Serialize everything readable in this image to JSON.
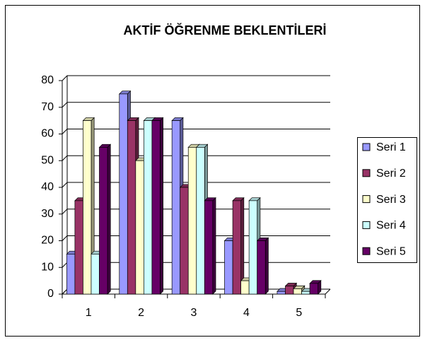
{
  "chart_data": {
    "type": "bar",
    "title": "AKTİF ÖĞRENME BEKLENTİLERİ",
    "categories": [
      "1",
      "2",
      "3",
      "4",
      "5"
    ],
    "series": [
      {
        "name": "Seri 1",
        "color": "#9999ff",
        "values": [
          15,
          75,
          65,
          20,
          1
        ]
      },
      {
        "name": "Seri 2",
        "color": "#993366",
        "values": [
          35,
          65,
          40,
          35,
          3
        ]
      },
      {
        "name": "Seri 3",
        "color": "#ffffcc",
        "values": [
          65,
          50,
          55,
          5,
          2
        ]
      },
      {
        "name": "Seri 4",
        "color": "#ccffff",
        "values": [
          15,
          65,
          55,
          35,
          1
        ]
      },
      {
        "name": "Seri 5",
        "color": "#660066",
        "values": [
          55,
          65,
          35,
          20,
          4
        ]
      }
    ],
    "ylim": [
      0,
      80
    ],
    "yticks": [
      0,
      10,
      20,
      30,
      40,
      50,
      60,
      70,
      80
    ],
    "grid": true,
    "legend": "right"
  }
}
